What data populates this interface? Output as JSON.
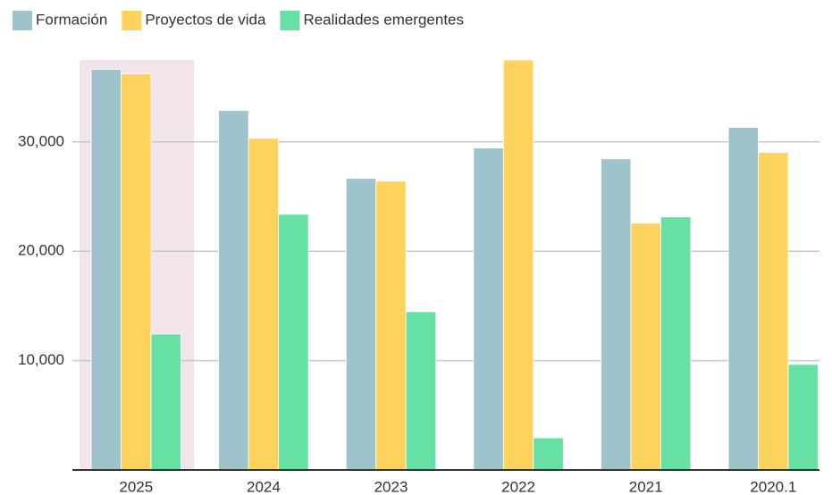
{
  "chart_data": {
    "type": "bar",
    "categories": [
      "2025",
      "2024",
      "2023",
      "2022",
      "2021",
      "2020.1"
    ],
    "series": [
      {
        "name": "Formación",
        "color": "#9fc3cb",
        "values": [
          36630,
          32870,
          26660,
          29440,
          28450,
          31320
        ]
      },
      {
        "name": "Proyectos de vida",
        "color": "#fdd35e",
        "values": [
          36220,
          30330,
          26410,
          37500,
          22570,
          29030
        ]
      },
      {
        "name": "Realidades emergentes",
        "color": "#66e0a3",
        "values": [
          12430,
          23380,
          14470,
          2940,
          23140,
          9650
        ]
      }
    ],
    "ylim": [
      0,
      37500
    ],
    "yticks": [
      {
        "value": 10000,
        "label": "10,000"
      },
      {
        "value": 20000,
        "label": "20,000"
      },
      {
        "value": 30000,
        "label": "30,000"
      }
    ],
    "grid": true,
    "legend": "top-left"
  }
}
